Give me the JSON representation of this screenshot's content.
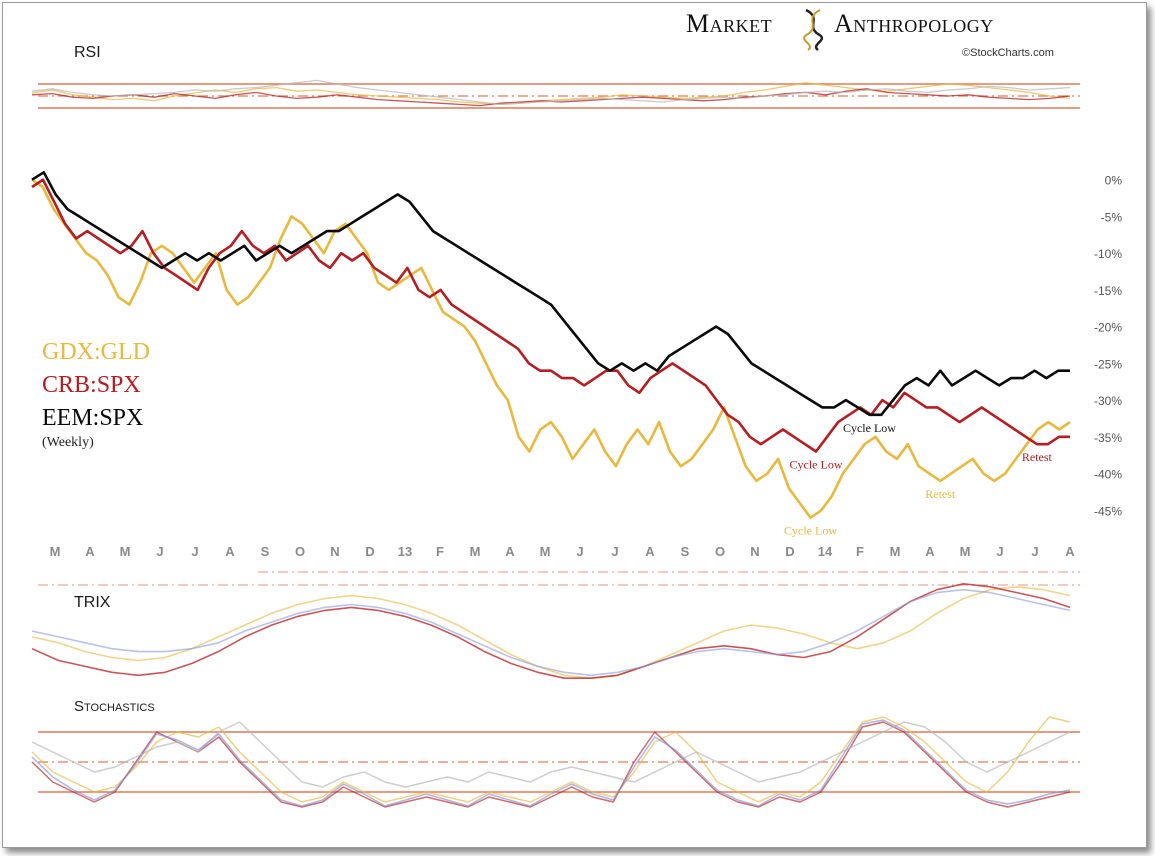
{
  "header": {
    "brand_left": "Market",
    "brand_right": "Anthropology",
    "credit": "©StockCharts.com"
  },
  "colors": {
    "gdx_gld": "#eab83c",
    "crb_spx": "#b81c20",
    "eem_spx": "#0a0a0a",
    "guide": "#e07a5c",
    "month_highlight_d": "#e8a832",
    "month_highlight_14": "#b81c20"
  },
  "chart_data": [
    {
      "type": "line",
      "title": "RSI",
      "ylim": [
        0,
        100
      ],
      "guides": [
        70,
        50,
        30
      ],
      "series": [
        {
          "name": "GDX:GLD",
          "color": "#eab83c",
          "values": [
            55,
            60,
            52,
            48,
            44,
            46,
            42,
            50,
            55,
            60,
            56,
            62,
            64,
            58,
            60,
            56,
            52,
            50,
            48,
            46,
            44,
            40,
            38,
            36,
            38,
            42,
            44,
            46,
            48,
            52,
            50,
            48,
            46,
            48,
            50,
            56,
            60,
            66,
            72,
            68,
            64,
            60,
            58,
            62,
            66,
            70,
            68,
            64,
            60,
            56,
            50,
            46
          ]
        },
        {
          "name": "CRB:SPX",
          "color": "#b81c20",
          "values": [
            52,
            54,
            48,
            46,
            50,
            52,
            48,
            54,
            50,
            46,
            52,
            56,
            50,
            46,
            48,
            52,
            48,
            44,
            42,
            40,
            38,
            36,
            34,
            38,
            40,
            42,
            40,
            42,
            44,
            46,
            48,
            46,
            44,
            42,
            44,
            48,
            50,
            54,
            56,
            52,
            58,
            62,
            56,
            54,
            52,
            50,
            52,
            48,
            46,
            44,
            46,
            50
          ]
        },
        {
          "name": "EEM:SPX",
          "color": "#b8b8b8",
          "values": [
            58,
            62,
            56,
            52,
            50,
            52,
            54,
            56,
            60,
            58,
            62,
            64,
            68,
            72,
            76,
            70,
            64,
            60,
            56,
            52,
            48,
            44,
            40,
            36,
            38,
            40,
            42,
            44,
            46,
            44,
            42,
            40,
            44,
            46,
            48,
            46,
            50,
            52,
            56,
            58,
            56,
            60,
            62,
            58,
            56,
            60,
            62,
            66,
            64,
            60,
            62,
            64
          ]
        }
      ]
    },
    {
      "type": "line",
      "title": "",
      "legend_sub": "(Weekly)",
      "ylim": [
        -47,
        2
      ],
      "y_ticks": [
        0,
        -5,
        -10,
        -15,
        -20,
        -25,
        -30,
        -35,
        -40,
        -45
      ],
      "y_tick_labels": [
        "0%",
        "-5%",
        "-10%",
        "-15%",
        "-20%",
        "-25%",
        "-30%",
        "-35%",
        "-40%",
        "-45%"
      ],
      "x_labels": [
        "M",
        "A",
        "M",
        "J",
        "J",
        "A",
        "S",
        "O",
        "N",
        "D",
        "13",
        "F",
        "M",
        "A",
        "M",
        "J",
        "J",
        "A",
        "S",
        "O",
        "N",
        "D",
        "14",
        "F",
        "M",
        "A",
        "M",
        "J",
        "J",
        "A"
      ],
      "x_label_colors": {
        "D_2": "#e8a832",
        "14": "#b81c20",
        "M_3": "#111111"
      },
      "series": [
        {
          "name": "GDX:GLD",
          "color": "#eab83c",
          "values": [
            0,
            -1,
            -4,
            -6,
            -8,
            -10,
            -11,
            -13,
            -16,
            -17,
            -14,
            -10,
            -9,
            -10,
            -12,
            -14,
            -12,
            -10,
            -15,
            -17,
            -16,
            -14,
            -12,
            -8,
            -5,
            -6,
            -8,
            -10,
            -7,
            -6,
            -8,
            -10,
            -14,
            -15,
            -14,
            -13,
            -12,
            -15,
            -18,
            -19,
            -20,
            -22,
            -25,
            -28,
            -30,
            -35,
            -37,
            -34,
            -33,
            -35,
            -38,
            -36,
            -34,
            -37,
            -39,
            -36,
            -34,
            -36,
            -33,
            -37,
            -39,
            -38,
            -36,
            -34,
            -31,
            -35,
            -39,
            -41,
            -40,
            -38,
            -42,
            -44,
            -46,
            -45,
            -43,
            -40,
            -38,
            -36,
            -35,
            -37,
            -38,
            -36,
            -39,
            -40,
            -41,
            -40,
            -39,
            -38,
            -40,
            -41,
            -40,
            -38,
            -36,
            -34,
            -33,
            -34,
            -33
          ]
        },
        {
          "name": "CRB:SPX",
          "color": "#b81c20",
          "values": [
            -1,
            0,
            -3,
            -6,
            -8,
            -7,
            -8,
            -9,
            -10,
            -9,
            -7,
            -10,
            -12,
            -13,
            -14,
            -15,
            -12,
            -10,
            -9,
            -7,
            -9,
            -10,
            -9,
            -11,
            -10,
            -9,
            -11,
            -12,
            -10,
            -11,
            -10,
            -12,
            -13,
            -14,
            -12,
            -15,
            -16,
            -15,
            -17,
            -18,
            -19,
            -20,
            -21,
            -22,
            -23,
            -25,
            -26,
            -26,
            -27,
            -27,
            -28,
            -27,
            -26,
            -26,
            -28,
            -29,
            -27,
            -26,
            -25,
            -26,
            -27,
            -28,
            -30,
            -32,
            -33,
            -35,
            -36,
            -35,
            -34,
            -35,
            -36,
            -37,
            -35,
            -33,
            -32,
            -31,
            -32,
            -30,
            -31,
            -29,
            -30,
            -31,
            -31,
            -32,
            -33,
            -32,
            -31,
            -32,
            -33,
            -34,
            -35,
            -36,
            -36,
            -35,
            -35
          ]
        },
        {
          "name": "EEM:SPX",
          "color": "#0a0a0a",
          "values": [
            0,
            1,
            -2,
            -4,
            -5,
            -6,
            -7,
            -8,
            -9,
            -10,
            -11,
            -12,
            -11,
            -10,
            -11,
            -10,
            -11,
            -10,
            -9,
            -11,
            -10,
            -9,
            -10,
            -9,
            -8,
            -7,
            -7,
            -6,
            -5,
            -4,
            -3,
            -2,
            -3,
            -5,
            -7,
            -8,
            -9,
            -10,
            -11,
            -12,
            -13,
            -14,
            -15,
            -16,
            -17,
            -19,
            -21,
            -23,
            -25,
            -26,
            -25,
            -26,
            -25,
            -26,
            -24,
            -23,
            -22,
            -21,
            -20,
            -21,
            -23,
            -25,
            -26,
            -27,
            -28,
            -29,
            -30,
            -31,
            -31,
            -30,
            -31,
            -32,
            -32,
            -30,
            -28,
            -27,
            -28,
            -26,
            -28,
            -27,
            -26,
            -27,
            -28,
            -27,
            -27,
            -26,
            -27,
            -26,
            -26
          ]
        }
      ],
      "annotations": [
        {
          "text": "Cycle Low",
          "series": "EEM:SPX",
          "color": "#111111"
        },
        {
          "text": "Cycle Low",
          "series": "CRB:SPX",
          "color": "#b81c20"
        },
        {
          "text": "Cycle Low",
          "series": "GDX:GLD",
          "color": "#eab83c"
        },
        {
          "text": "Retest",
          "series": "CRB:SPX",
          "color": "#b81c20"
        },
        {
          "text": "Retest",
          "series": "GDX:GLD",
          "color": "#eab83c"
        }
      ]
    },
    {
      "type": "line",
      "title": "TRIX",
      "ylim": [
        -1,
        1
      ],
      "series": [
        {
          "name": "GDX:GLD",
          "color": "#eab83c",
          "values": [
            -0.1,
            -0.2,
            -0.35,
            -0.45,
            -0.5,
            -0.45,
            -0.3,
            -0.1,
            0.1,
            0.3,
            0.45,
            0.55,
            0.6,
            0.55,
            0.45,
            0.3,
            0.1,
            -0.15,
            -0.4,
            -0.6,
            -0.75,
            -0.8,
            -0.75,
            -0.6,
            -0.4,
            -0.2,
            0,
            0.1,
            0.05,
            -0.05,
            -0.2,
            -0.3,
            -0.2,
            0,
            0.3,
            0.55,
            0.7,
            0.75,
            0.7,
            0.6
          ]
        },
        {
          "name": "CRB:SPX",
          "color": "#b81c20",
          "values": [
            -0.3,
            -0.5,
            -0.6,
            -0.7,
            -0.75,
            -0.7,
            -0.55,
            -0.35,
            -0.1,
            0.1,
            0.25,
            0.35,
            0.4,
            0.35,
            0.25,
            0.1,
            -0.1,
            -0.35,
            -0.55,
            -0.7,
            -0.8,
            -0.8,
            -0.75,
            -0.6,
            -0.45,
            -0.3,
            -0.25,
            -0.3,
            -0.4,
            -0.45,
            -0.35,
            -0.1,
            0.2,
            0.5,
            0.7,
            0.8,
            0.75,
            0.65,
            0.55,
            0.4
          ]
        },
        {
          "name": "EEM:SPX",
          "color": "#8a9ad8",
          "values": [
            0.0,
            -0.1,
            -0.2,
            -0.3,
            -0.35,
            -0.35,
            -0.3,
            -0.2,
            0,
            0.15,
            0.3,
            0.4,
            0.45,
            0.4,
            0.3,
            0.15,
            -0.05,
            -0.25,
            -0.45,
            -0.6,
            -0.7,
            -0.75,
            -0.7,
            -0.6,
            -0.45,
            -0.35,
            -0.3,
            -0.35,
            -0.4,
            -0.35,
            -0.2,
            0,
            0.25,
            0.5,
            0.65,
            0.7,
            0.65,
            0.55,
            0.45,
            0.35
          ]
        }
      ]
    },
    {
      "type": "line",
      "title": "Stochastics",
      "ylim": [
        0,
        100
      ],
      "guides": [
        80,
        50,
        20
      ],
      "series": [
        {
          "name": "GDX:GLD",
          "color": "#eab83c",
          "values": [
            60,
            40,
            30,
            20,
            25,
            45,
            70,
            80,
            75,
            85,
            60,
            40,
            20,
            10,
            15,
            30,
            20,
            10,
            15,
            20,
            15,
            10,
            20,
            15,
            10,
            20,
            30,
            20,
            15,
            40,
            70,
            80,
            60,
            30,
            20,
            10,
            20,
            15,
            30,
            60,
            90,
            95,
            85,
            70,
            50,
            30,
            20,
            40,
            70,
            95,
            90
          ]
        },
        {
          "name": "CRB:SPX",
          "color": "#b81c20",
          "values": [
            50,
            30,
            20,
            10,
            20,
            50,
            80,
            70,
            60,
            75,
            50,
            30,
            10,
            5,
            10,
            25,
            15,
            5,
            10,
            15,
            10,
            5,
            15,
            10,
            5,
            15,
            25,
            15,
            10,
            50,
            80,
            60,
            40,
            20,
            10,
            5,
            15,
            10,
            20,
            50,
            85,
            90,
            80,
            60,
            40,
            20,
            10,
            5,
            10,
            15,
            20
          ]
        },
        {
          "name": "EEM:SPX",
          "color": "#b8b8b8",
          "values": [
            70,
            60,
            50,
            40,
            45,
            55,
            65,
            70,
            60,
            80,
            90,
            70,
            50,
            30,
            25,
            35,
            40,
            30,
            25,
            30,
            35,
            30,
            40,
            35,
            30,
            40,
            45,
            40,
            35,
            30,
            40,
            50,
            60,
            50,
            40,
            30,
            35,
            40,
            50,
            60,
            70,
            80,
            90,
            85,
            70,
            50,
            40,
            50,
            60,
            70,
            80
          ]
        },
        {
          "name": "",
          "color": "#7f8ed6",
          "values": [
            55,
            35,
            22,
            12,
            22,
            48,
            78,
            72,
            62,
            78,
            52,
            32,
            12,
            6,
            12,
            28,
            18,
            6,
            12,
            18,
            12,
            6,
            18,
            12,
            6,
            18,
            28,
            18,
            12,
            45,
            75,
            62,
            42,
            22,
            12,
            6,
            18,
            12,
            22,
            55,
            88,
            92,
            82,
            62,
            42,
            22,
            12,
            8,
            12,
            18,
            22
          ]
        }
      ]
    }
  ]
}
